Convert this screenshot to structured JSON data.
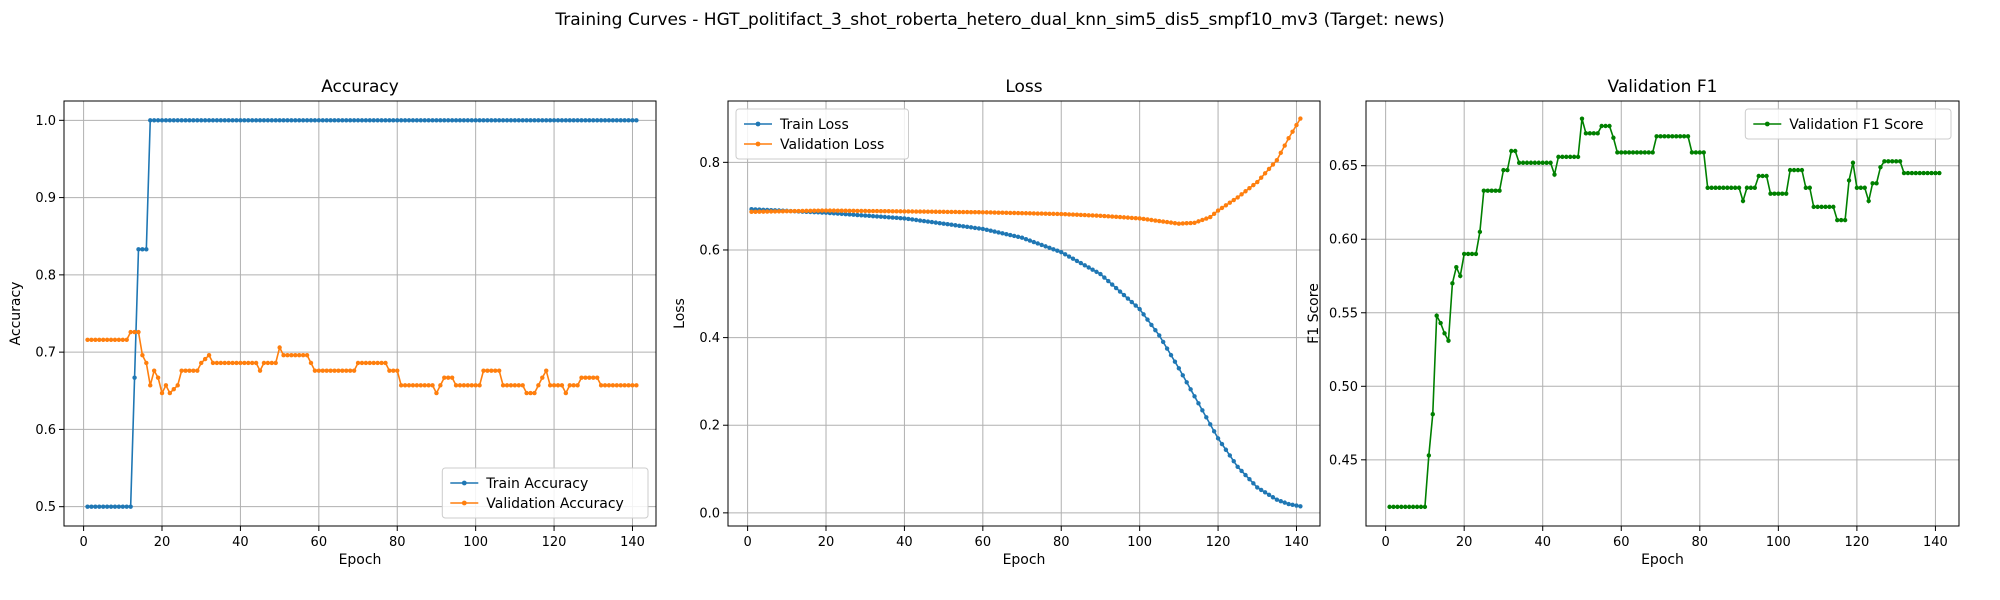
{
  "suptitle": "Training Curves - HGT_politifact_3_shot_roberta_hetero_dual_knn_sim5_dis5_smpf10_mv3 (Target: news)",
  "chart_data": [
    {
      "type": "line",
      "title": "Accuracy",
      "xlabel": "Epoch",
      "ylabel": "Accuracy",
      "xlim": [
        -5,
        146
      ],
      "ylim": [
        0.475,
        1.025
      ],
      "xticks": [
        0,
        20,
        40,
        60,
        80,
        100,
        120,
        140
      ],
      "yticks": [
        0.5,
        0.6,
        0.7,
        0.8,
        0.9,
        1.0
      ],
      "ytick_labels": [
        "0.5",
        "0.6",
        "0.7",
        "0.8",
        "0.9",
        "1.0"
      ],
      "grid": true,
      "legend": "lower-right",
      "x_start": 1,
      "x_end": 141,
      "series": [
        {
          "name": "Train Accuracy",
          "color": "#1f77b4",
          "segments": [
            [
              1,
              0.5
            ],
            [
              12,
              0.5
            ],
            [
              13,
              0.667
            ],
            [
              14,
              0.833
            ],
            [
              16,
              0.833
            ],
            [
              17,
              1.0
            ],
            [
              141,
              1.0
            ]
          ]
        },
        {
          "name": "Validation Accuracy",
          "color": "#ff7f0e",
          "segments": [
            [
              1,
              0.716
            ],
            [
              11,
              0.716
            ],
            [
              12,
              0.726
            ],
            [
              14,
              0.726
            ],
            [
              15,
              0.696
            ],
            [
              16,
              0.686
            ],
            [
              17,
              0.657
            ],
            [
              18,
              0.676
            ],
            [
              19,
              0.667
            ],
            [
              20,
              0.647
            ],
            [
              21,
              0.657
            ],
            [
              22,
              0.647
            ],
            [
              24,
              0.657
            ],
            [
              25,
              0.676
            ],
            [
              29,
              0.676
            ],
            [
              30,
              0.686
            ],
            [
              32,
              0.696
            ],
            [
              33,
              0.686
            ],
            [
              44,
              0.686
            ],
            [
              45,
              0.676
            ],
            [
              46,
              0.686
            ],
            [
              49,
              0.686
            ],
            [
              50,
              0.706
            ],
            [
              51,
              0.696
            ],
            [
              57,
              0.696
            ],
            [
              58,
              0.686
            ],
            [
              59,
              0.676
            ],
            [
              69,
              0.676
            ],
            [
              70,
              0.686
            ],
            [
              77,
              0.686
            ],
            [
              78,
              0.676
            ],
            [
              80,
              0.676
            ],
            [
              81,
              0.657
            ],
            [
              89,
              0.657
            ],
            [
              90,
              0.647
            ],
            [
              91,
              0.657
            ],
            [
              92,
              0.667
            ],
            [
              94,
              0.667
            ],
            [
              95,
              0.657
            ],
            [
              101,
              0.657
            ],
            [
              102,
              0.676
            ],
            [
              106,
              0.676
            ],
            [
              107,
              0.657
            ],
            [
              112,
              0.657
            ],
            [
              113,
              0.647
            ],
            [
              115,
              0.647
            ],
            [
              116,
              0.657
            ],
            [
              117,
              0.667
            ],
            [
              118,
              0.676
            ],
            [
              119,
              0.657
            ],
            [
              122,
              0.657
            ],
            [
              123,
              0.647
            ],
            [
              124,
              0.657
            ],
            [
              126,
              0.657
            ],
            [
              127,
              0.667
            ],
            [
              131,
              0.667
            ],
            [
              132,
              0.657
            ],
            [
              141,
              0.657
            ]
          ]
        }
      ]
    },
    {
      "type": "line",
      "title": "Loss",
      "xlabel": "Epoch",
      "ylabel": "Loss",
      "xlim": [
        -5,
        146
      ],
      "ylim": [
        -0.03,
        0.94
      ],
      "xticks": [
        0,
        20,
        40,
        60,
        80,
        100,
        120,
        140
      ],
      "yticks": [
        0.0,
        0.2,
        0.4,
        0.6,
        0.8
      ],
      "ytick_labels": [
        "0.0",
        "0.2",
        "0.4",
        "0.6",
        "0.8"
      ],
      "grid": true,
      "legend": "upper-left",
      "x_start": 1,
      "x_end": 141,
      "series": [
        {
          "name": "Train Loss",
          "color": "#1f77b4",
          "segments": [
            [
              1,
              0.693
            ],
            [
              20,
              0.685
            ],
            [
              40,
              0.672
            ],
            [
              60,
              0.648
            ],
            [
              70,
              0.628
            ],
            [
              80,
              0.595
            ],
            [
              90,
              0.545
            ],
            [
              100,
              0.465
            ],
            [
              105,
              0.405
            ],
            [
              110,
              0.33
            ],
            [
              115,
              0.25
            ],
            [
              120,
              0.17
            ],
            [
              125,
              0.105
            ],
            [
              130,
              0.058
            ],
            [
              135,
              0.03
            ],
            [
              138,
              0.02
            ],
            [
              141,
              0.015
            ]
          ]
        },
        {
          "name": "Validation Loss",
          "color": "#ff7f0e",
          "segments": [
            [
              1,
              0.687
            ],
            [
              20,
              0.69
            ],
            [
              40,
              0.688
            ],
            [
              60,
              0.686
            ],
            [
              80,
              0.682
            ],
            [
              90,
              0.678
            ],
            [
              100,
              0.672
            ],
            [
              105,
              0.666
            ],
            [
              110,
              0.66
            ],
            [
              114,
              0.662
            ],
            [
              118,
              0.675
            ],
            [
              120,
              0.69
            ],
            [
              125,
              0.72
            ],
            [
              130,
              0.755
            ],
            [
              135,
              0.805
            ],
            [
              138,
              0.855
            ],
            [
              141,
              0.9
            ]
          ]
        }
      ]
    },
    {
      "type": "line",
      "title": "Validation F1",
      "xlabel": "Epoch",
      "ylabel": "F1 Score",
      "xlim": [
        -5,
        146
      ],
      "ylim": [
        0.405,
        0.694
      ],
      "xticks": [
        0,
        20,
        40,
        60,
        80,
        100,
        120,
        140
      ],
      "yticks": [
        0.45,
        0.5,
        0.55,
        0.6,
        0.65
      ],
      "ytick_labels": [
        "0.45",
        "0.50",
        "0.55",
        "0.60",
        "0.65"
      ],
      "grid": true,
      "legend": "upper-right",
      "x_start": 1,
      "x_end": 141,
      "series": [
        {
          "name": "Validation F1 Score",
          "color": "#008000",
          "segments": [
            [
              1,
              0.418
            ],
            [
              10,
              0.418
            ],
            [
              11,
              0.453
            ],
            [
              12,
              0.481
            ],
            [
              13,
              0.548
            ],
            [
              14,
              0.543
            ],
            [
              15,
              0.536
            ],
            [
              16,
              0.531
            ],
            [
              17,
              0.57
            ],
            [
              18,
              0.581
            ],
            [
              19,
              0.575
            ],
            [
              20,
              0.59
            ],
            [
              23,
              0.59
            ],
            [
              24,
              0.605
            ],
            [
              25,
              0.633
            ],
            [
              29,
              0.633
            ],
            [
              30,
              0.647
            ],
            [
              31,
              0.647
            ],
            [
              32,
              0.66
            ],
            [
              33,
              0.66
            ],
            [
              34,
              0.652
            ],
            [
              42,
              0.652
            ],
            [
              43,
              0.644
            ],
            [
              44,
              0.656
            ],
            [
              49,
              0.656
            ],
            [
              50,
              0.682
            ],
            [
              51,
              0.672
            ],
            [
              54,
              0.672
            ],
            [
              55,
              0.677
            ],
            [
              57,
              0.677
            ],
            [
              58,
              0.669
            ],
            [
              59,
              0.659
            ],
            [
              68,
              0.659
            ],
            [
              69,
              0.67
            ],
            [
              77,
              0.67
            ],
            [
              78,
              0.659
            ],
            [
              81,
              0.659
            ],
            [
              82,
              0.635
            ],
            [
              90,
              0.635
            ],
            [
              91,
              0.626
            ],
            [
              92,
              0.635
            ],
            [
              94,
              0.635
            ],
            [
              95,
              0.643
            ],
            [
              97,
              0.643
            ],
            [
              98,
              0.631
            ],
            [
              102,
              0.631
            ],
            [
              103,
              0.647
            ],
            [
              106,
              0.647
            ],
            [
              107,
              0.635
            ],
            [
              108,
              0.635
            ],
            [
              109,
              0.622
            ],
            [
              114,
              0.622
            ],
            [
              115,
              0.613
            ],
            [
              117,
              0.613
            ],
            [
              118,
              0.64
            ],
            [
              119,
              0.652
            ],
            [
              120,
              0.635
            ],
            [
              122,
              0.635
            ],
            [
              123,
              0.626
            ],
            [
              124,
              0.638
            ],
            [
              125,
              0.638
            ],
            [
              126,
              0.649
            ],
            [
              127,
              0.653
            ],
            [
              131,
              0.653
            ],
            [
              132,
              0.645
            ],
            [
              141,
              0.645
            ]
          ]
        }
      ]
    }
  ]
}
